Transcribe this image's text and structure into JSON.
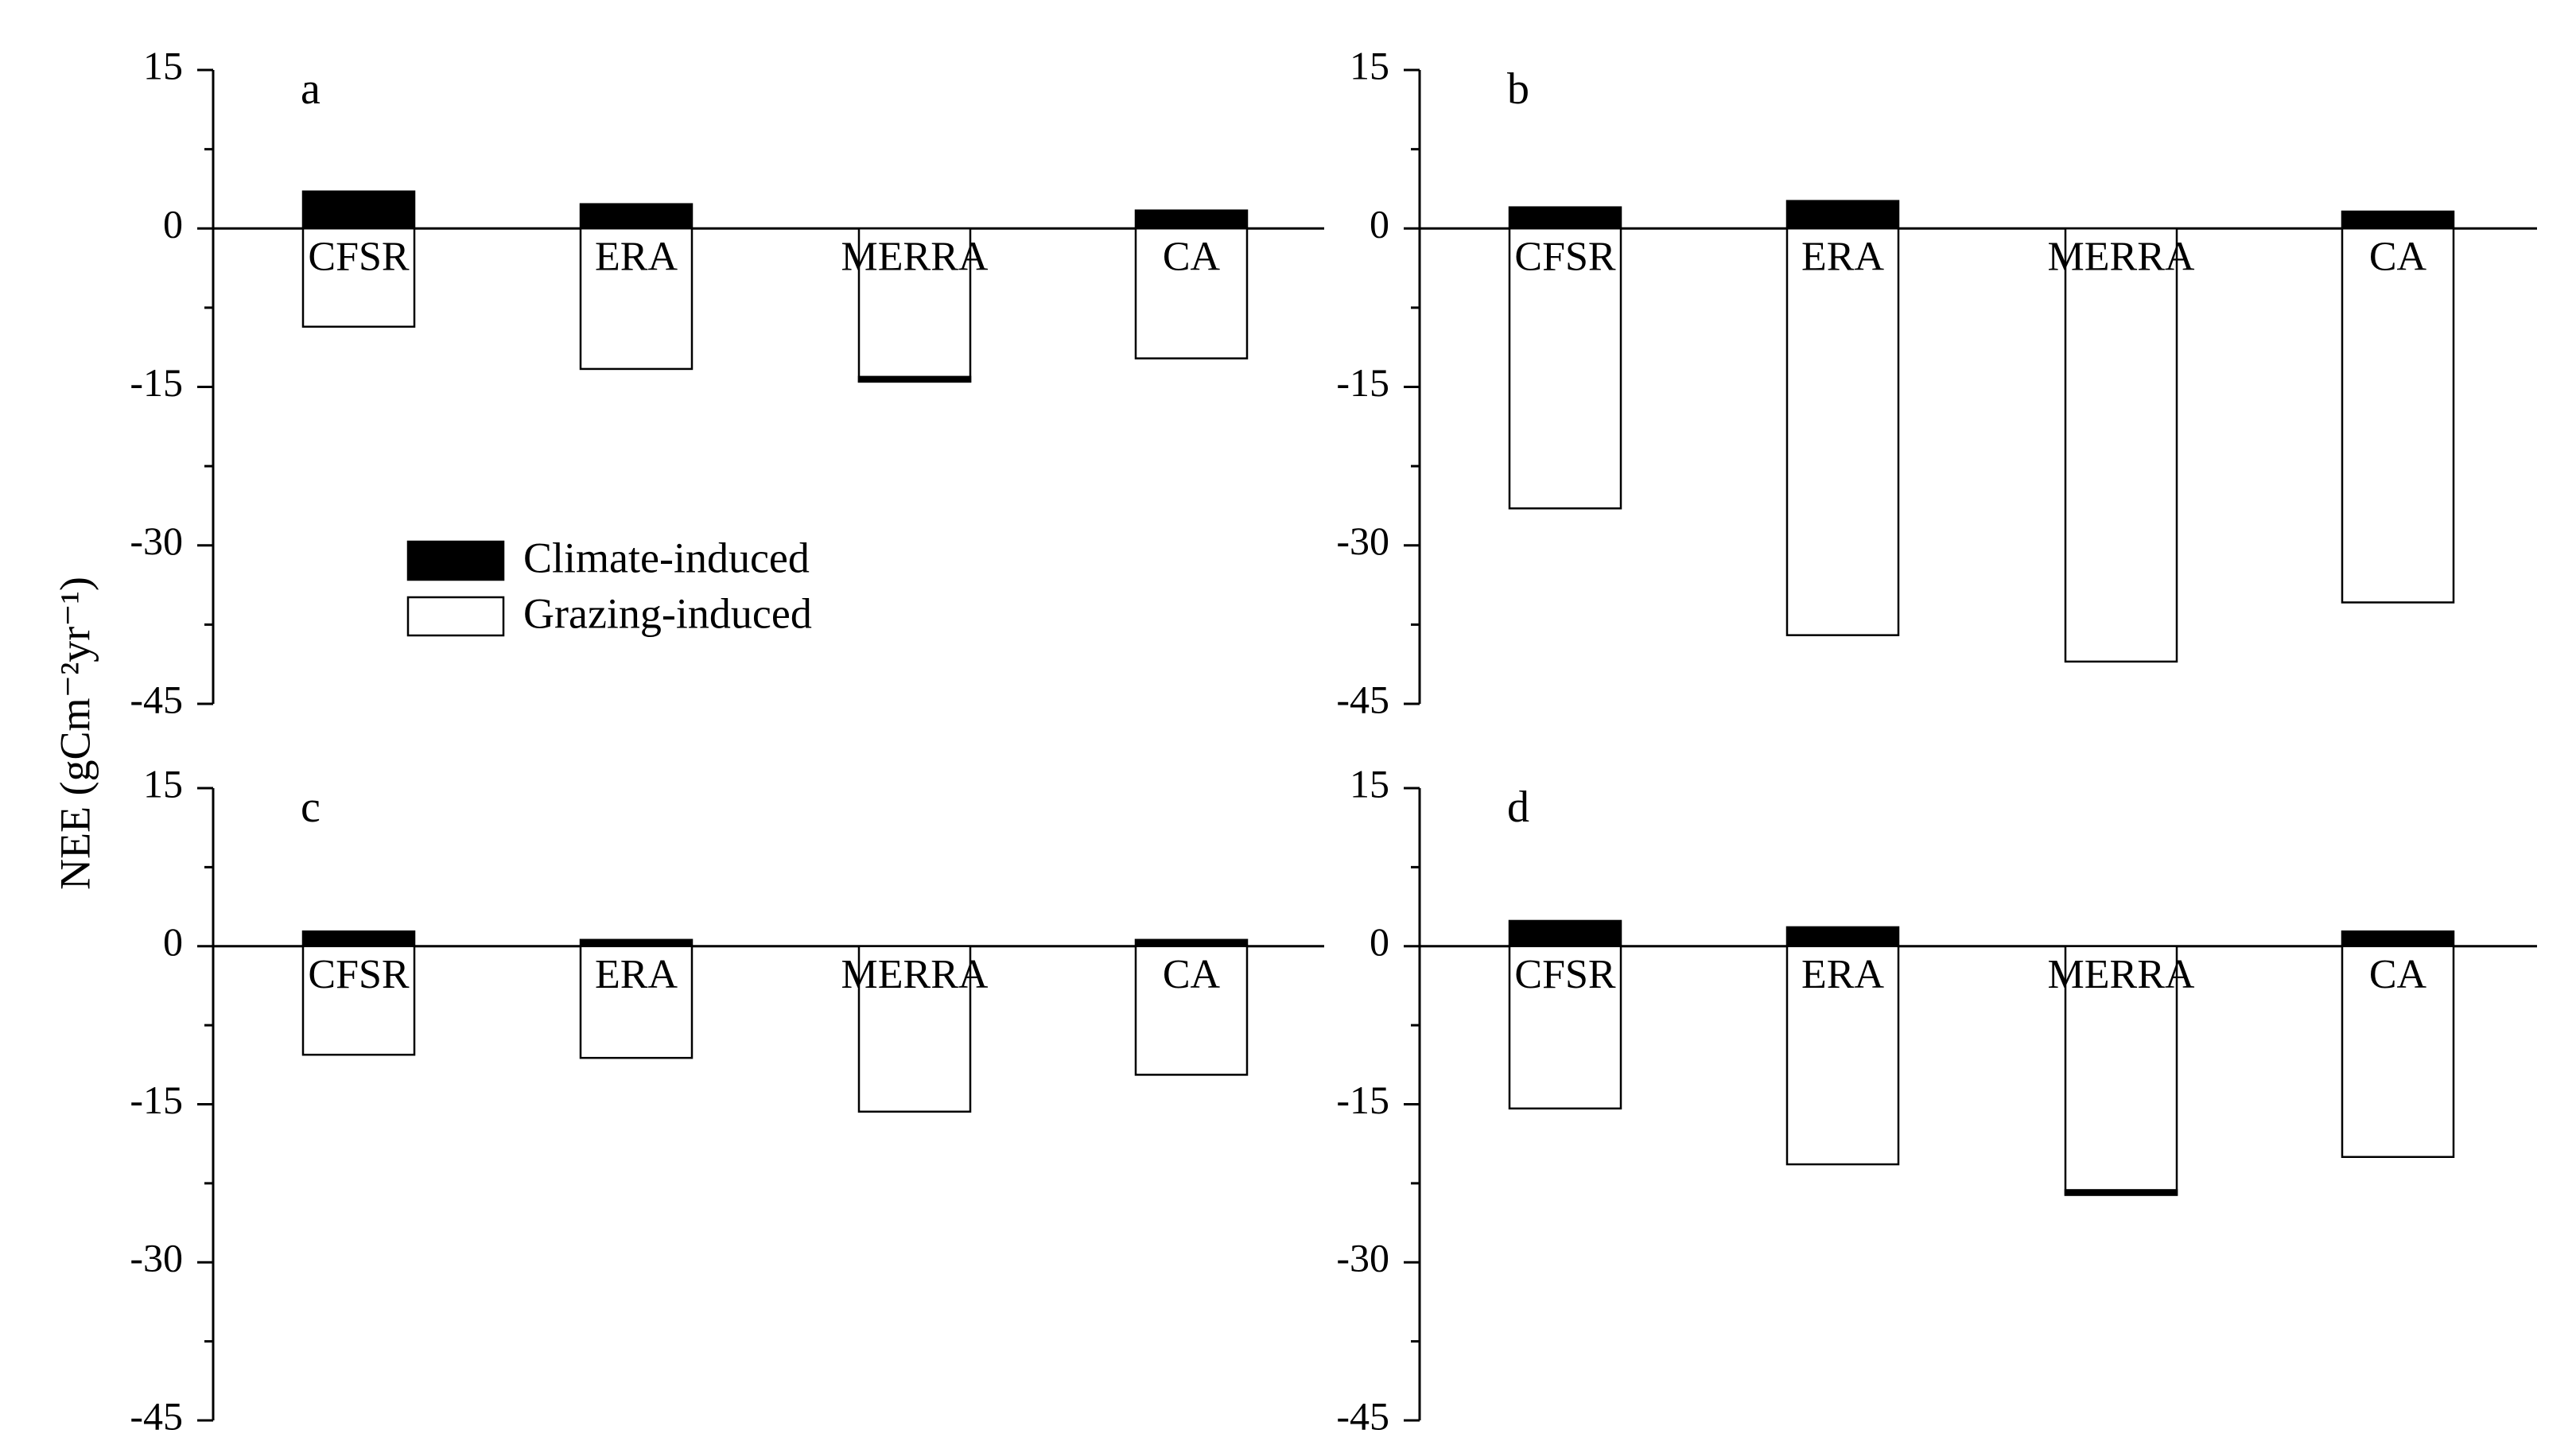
{
  "chart_data": [
    {
      "type": "bar",
      "panel": "a",
      "categories": [
        "CFSR",
        "ERA",
        "MERRA",
        "CA"
      ],
      "series": [
        {
          "name": "Climate-induced",
          "values": [
            3.5,
            2.3,
            -14.5,
            1.7
          ]
        },
        {
          "name": "Grazing-induced",
          "values": [
            -9.3,
            -13.3,
            0,
            -12.3
          ]
        }
      ],
      "ylim": [
        -45,
        15
      ],
      "yticks": [
        15,
        0,
        -15,
        -30,
        -45
      ]
    },
    {
      "type": "bar",
      "panel": "b",
      "categories": [
        "CFSR",
        "ERA",
        "MERRA",
        "CA"
      ],
      "series": [
        {
          "name": "Climate-induced",
          "values": [
            2.0,
            2.6,
            0,
            1.6
          ]
        },
        {
          "name": "Grazing-induced",
          "values": [
            -26.5,
            -38.5,
            -41.0,
            -35.4
          ]
        }
      ],
      "ylim": [
        -45,
        15
      ],
      "yticks": [
        15,
        0,
        -15,
        -30,
        -45
      ]
    },
    {
      "type": "bar",
      "panel": "c",
      "categories": [
        "CFSR",
        "ERA",
        "MERRA",
        "CA"
      ],
      "series": [
        {
          "name": "Climate-induced",
          "values": [
            1.4,
            0.6,
            0,
            0.6
          ]
        },
        {
          "name": "Grazing-induced",
          "values": [
            -10.3,
            -10.6,
            -15.7,
            -12.2
          ]
        }
      ],
      "ylim": [
        -45,
        15
      ],
      "yticks": [
        15,
        0,
        -15,
        -30,
        -45
      ]
    },
    {
      "type": "bar",
      "panel": "d",
      "categories": [
        "CFSR",
        "ERA",
        "MERRA",
        "CA"
      ],
      "series": [
        {
          "name": "Climate-induced",
          "values": [
            2.4,
            1.8,
            -23.6,
            1.4
          ]
        },
        {
          "name": "Grazing-induced",
          "values": [
            -15.4,
            -20.7,
            0,
            -20.0
          ]
        }
      ],
      "ylim": [
        -45,
        15
      ],
      "yticks": [
        15,
        0,
        -15,
        -30,
        -45
      ]
    }
  ],
  "ylabel": "NEE (gCm⁻²yr⁻¹)",
  "legend": {
    "placement": "inside panel a, lower-left",
    "items": [
      {
        "name": "Climate-induced",
        "color": "#000000"
      },
      {
        "name": "Grazing-induced",
        "color": "#ffffff"
      }
    ]
  },
  "colors": {
    "climate": "#000000",
    "grazing": "#ffffff",
    "axis": "#000000"
  }
}
